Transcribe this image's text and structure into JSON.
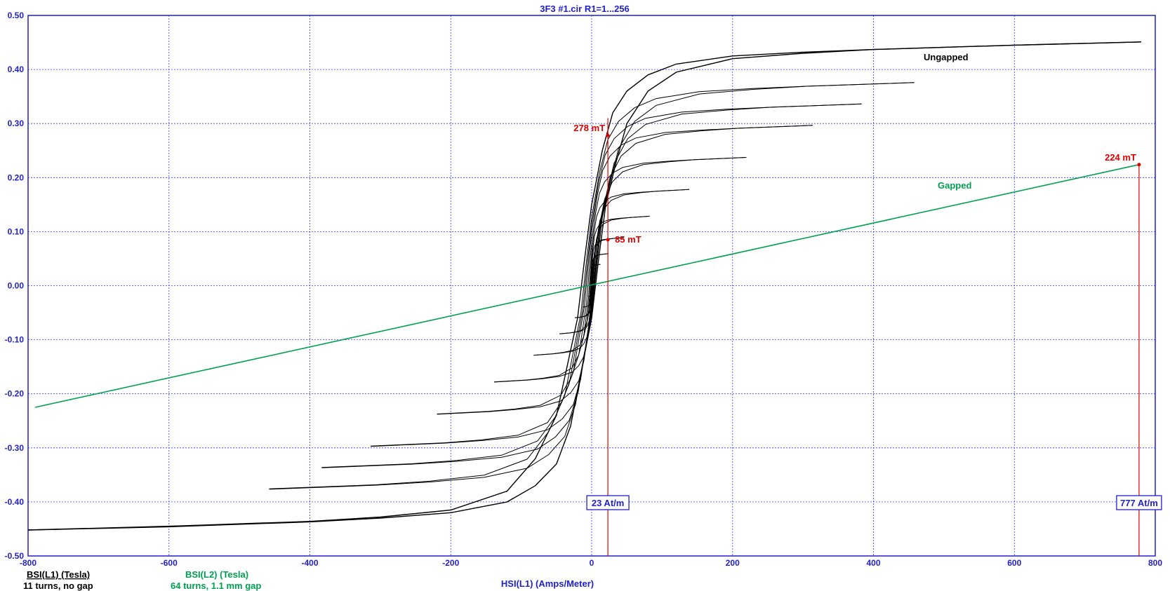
{
  "chart_data": {
    "type": "line",
    "title": "3F3 #1.cir R1=1...256",
    "xlabel": "HSI(L1) (Amps/Meter)",
    "xlim": [
      -800,
      800
    ],
    "ylim": [
      -0.5,
      0.5
    ],
    "xticks": [
      -800,
      -600,
      -400,
      -200,
      0,
      200,
      400,
      600,
      800
    ],
    "yticks": [
      -0.5,
      -0.4,
      -0.3,
      -0.2,
      -0.1,
      0.0,
      0.1,
      0.2,
      0.3,
      0.4,
      0.5
    ],
    "xtick_labels": [
      "-800",
      "-600",
      "-400",
      "-200",
      "0",
      "200",
      "400",
      "600",
      "800"
    ],
    "ytick_labels": [
      "-0.50",
      "-0.40",
      "-0.30",
      "-0.20",
      "-0.10",
      "0.00",
      "0.10",
      "0.20",
      "0.30",
      "0.40",
      "0.50"
    ],
    "grid": true,
    "legend": [
      {
        "name": "BSI(L1) (Tesla)",
        "note": "11 turns, no gap",
        "color": "#000000"
      },
      {
        "name": "BSI(L2) (Tesla)",
        "note": "64 turns, 1.1 mm gap",
        "color": "#00a050"
      }
    ],
    "series": [
      {
        "name": "BSI(L1) (Tesla)",
        "label": "Ungapped",
        "color": "#000000",
        "major_loop": {
          "ascending": [
            [
              -800,
              -0.452
            ],
            [
              -600,
              -0.446
            ],
            [
              -400,
              -0.437
            ],
            [
              -300,
              -0.43
            ],
            [
              -200,
              -0.42
            ],
            [
              -120,
              -0.4
            ],
            [
              -80,
              -0.37
            ],
            [
              -50,
              -0.33
            ],
            [
              -30,
              -0.26
            ],
            [
              -15,
              -0.16
            ],
            [
              0,
              -0.06
            ],
            [
              10,
              0.05
            ],
            [
              20,
              0.15
            ],
            [
              35,
              0.23
            ],
            [
              50,
              0.3
            ],
            [
              80,
              0.36
            ],
            [
              120,
              0.395
            ],
            [
              200,
              0.42
            ],
            [
              300,
              0.43
            ],
            [
              400,
              0.437
            ],
            [
              600,
              0.445
            ],
            [
              780,
              0.451
            ]
          ],
          "descending": [
            [
              780,
              0.451
            ],
            [
              600,
              0.445
            ],
            [
              400,
              0.437
            ],
            [
              300,
              0.432
            ],
            [
              200,
              0.425
            ],
            [
              120,
              0.41
            ],
            [
              80,
              0.39
            ],
            [
              50,
              0.36
            ],
            [
              30,
              0.32
            ],
            [
              15,
              0.25
            ],
            [
              0,
              0.15
            ],
            [
              -10,
              0.05
            ],
            [
              -20,
              -0.06
            ],
            [
              -35,
              -0.15
            ],
            [
              -50,
              -0.24
            ],
            [
              -80,
              -0.32
            ],
            [
              -120,
              -0.38
            ],
            [
              -200,
              -0.415
            ],
            [
              -300,
              -0.428
            ],
            [
              -400,
              -0.436
            ],
            [
              -600,
              -0.445
            ],
            [
              -800,
              -0.452
            ]
          ]
        },
        "minor_loop_amplitudes": [
          0.38,
          0.34,
          0.3,
          0.24,
          0.18,
          0.13,
          0.09,
          0.06,
          0.04,
          0.02
        ]
      },
      {
        "name": "BSI(L2) (Tesla)",
        "label": "Gapped",
        "color": "#00a050",
        "x": [
          -790,
          777
        ],
        "y": [
          -0.225,
          0.224
        ]
      }
    ],
    "cursors": [
      {
        "x": 23,
        "x_label": "23 At/m",
        "markers": [
          {
            "y": 0.278,
            "label": "278 mT"
          },
          {
            "y": 0.085,
            "label": "85 mT"
          }
        ]
      },
      {
        "x": 777,
        "x_label": "777 At/m",
        "markers": [
          {
            "y": 0.224,
            "label": "224 mT"
          }
        ]
      }
    ]
  }
}
